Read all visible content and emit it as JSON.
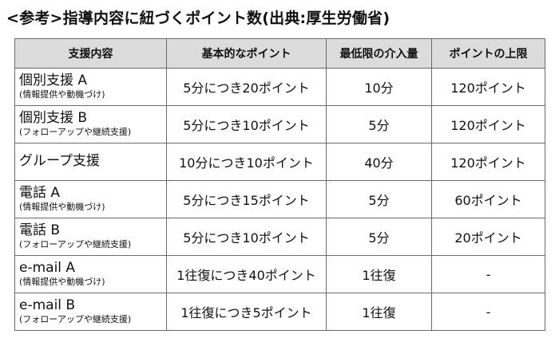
{
  "title": "<参考>指導内容に紐づくポイント数(出典:厚生労働省)",
  "table": {
    "headers": [
      "支援内容",
      "基本的なポイント",
      "最低限の介入量",
      "ポイントの上限"
    ],
    "rows": [
      {
        "name": "個別支援 A",
        "sub": "(情報提供や動機づけ)",
        "basic": "5分につき20ポイント",
        "minimum": "10分",
        "limit": "120ポイント"
      },
      {
        "name": "個別支援 B",
        "sub": "(フォローアップや継続支援)",
        "basic": "5分につき10ポイント",
        "minimum": "5分",
        "limit": "120ポイント"
      },
      {
        "name": "グループ支援",
        "sub": "",
        "basic": "10分につき10ポイント",
        "minimum": "40分",
        "limit": "120ポイント"
      },
      {
        "name": "電話 A",
        "sub": "(情報提供や動機づけ)",
        "basic": "5分につき15ポイント",
        "minimum": "5分",
        "limit": "60ポイント"
      },
      {
        "name": "電話 B",
        "sub": "(フォローアップや継続支援)",
        "basic": "5分につき10ポイント",
        "minimum": "5分",
        "limit": "20ポイント"
      },
      {
        "name": "e-mail A",
        "sub": "(情報提供や動機づけ)",
        "basic": "1往復につき40ポイント",
        "minimum": "1往復",
        "limit": "-"
      },
      {
        "name": "e-mail B",
        "sub": "(フォローアップや継続支援)",
        "basic": "1往復につき5ポイント",
        "minimum": "1往復",
        "limit": "-"
      }
    ]
  }
}
